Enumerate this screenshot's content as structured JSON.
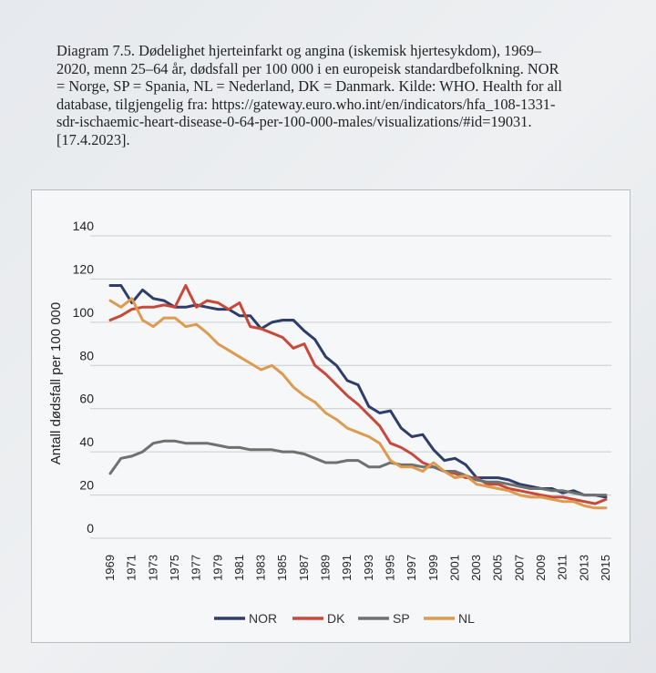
{
  "caption": {
    "lines": [
      "Diagram 7.5. Dødelighet hjerteinfarkt og angina (iskemisk hjertesykdom), 1969–",
      "2020, menn 25–64 år, dødsfall per 100 000 i en europeisk standardbefolkning. NOR",
      "= Norge, SP = Spania, NL = Nederland, DK = Danmark. Kilde: WHO. Health for all",
      "database, tilgjengelig fra: https://gateway.euro.who.int/en/indicators/hfa_108-1331-",
      "sdr-ischaemic-heart-disease-0-64-per-100-000-males/visualizations/#id=19031.",
      "[17.4.2023]."
    ]
  },
  "chart_data": {
    "type": "line",
    "title": "",
    "xlabel": "",
    "ylabel": "Antall dødsfall per 100 000",
    "ylim": [
      0,
      140
    ],
    "yticks": [
      "0",
      "20",
      "40",
      "60",
      "80",
      "100",
      "120",
      "140"
    ],
    "xticks": [
      "1969",
      "1971",
      "1973",
      "1975",
      "1977",
      "1979",
      "1981",
      "1983",
      "1985",
      "1987",
      "1989",
      "1991",
      "1993",
      "1995",
      "1997",
      "1999",
      "2001",
      "2003",
      "2005",
      "2007",
      "2009",
      "2011",
      "2013",
      "2015"
    ],
    "x": [
      1969,
      1970,
      1971,
      1972,
      1973,
      1974,
      1975,
      1976,
      1977,
      1978,
      1979,
      1980,
      1981,
      1982,
      1983,
      1984,
      1985,
      1986,
      1987,
      1988,
      1989,
      1990,
      1991,
      1992,
      1993,
      1994,
      1995,
      1996,
      1997,
      1998,
      1999,
      2000,
      2001,
      2002,
      2003,
      2004,
      2005,
      2006,
      2007,
      2008,
      2009,
      2010,
      2011,
      2012,
      2013,
      2014,
      2015
    ],
    "grid": "horizontal",
    "legend_position": "bottom",
    "series": [
      {
        "name": "NOR",
        "color": "#2f3d6b",
        "values": [
          117,
          117,
          109,
          115,
          111,
          110,
          107,
          107,
          108,
          107,
          106,
          106,
          103,
          103,
          97,
          100,
          101,
          101,
          96,
          92,
          84,
          80,
          73,
          71,
          61,
          58,
          59,
          51,
          47,
          48,
          41,
          36,
          37,
          34,
          28,
          28,
          28,
          27,
          25,
          24,
          23,
          23,
          21,
          22,
          20,
          20,
          19
        ]
      },
      {
        "name": "DK",
        "color": "#c8493a",
        "values": [
          101,
          103,
          106,
          107,
          107,
          108,
          107,
          117,
          107,
          110,
          109,
          106,
          109,
          98,
          97,
          95,
          93,
          88,
          90,
          80,
          76,
          71,
          66,
          62,
          57,
          52,
          44,
          42,
          39,
          35,
          33,
          31,
          30,
          28,
          28,
          25,
          25,
          23,
          22,
          21,
          20,
          19,
          19,
          18,
          17,
          16,
          18
        ]
      },
      {
        "name": "SP",
        "color": "#6e716e",
        "values": [
          30,
          37,
          38,
          40,
          44,
          45,
          45,
          44,
          44,
          44,
          43,
          42,
          42,
          41,
          41,
          41,
          40,
          40,
          39,
          37,
          35,
          35,
          36,
          36,
          33,
          33,
          35,
          34,
          34,
          33,
          33,
          31,
          31,
          29,
          27,
          26,
          26,
          25,
          24,
          23,
          23,
          22,
          22,
          21,
          20,
          20,
          20
        ]
      },
      {
        "name": "NL",
        "color": "#de9a4e",
        "values": [
          110,
          107,
          111,
          101,
          98,
          102,
          102,
          98,
          99,
          95,
          90,
          87,
          84,
          81,
          78,
          80,
          76,
          70,
          66,
          63,
          58,
          55,
          51,
          49,
          47,
          44,
          36,
          33,
          33,
          31,
          35,
          31,
          28,
          29,
          25,
          24,
          23,
          22,
          20,
          19,
          19,
          18,
          17,
          17,
          15,
          14,
          14
        ]
      }
    ]
  }
}
